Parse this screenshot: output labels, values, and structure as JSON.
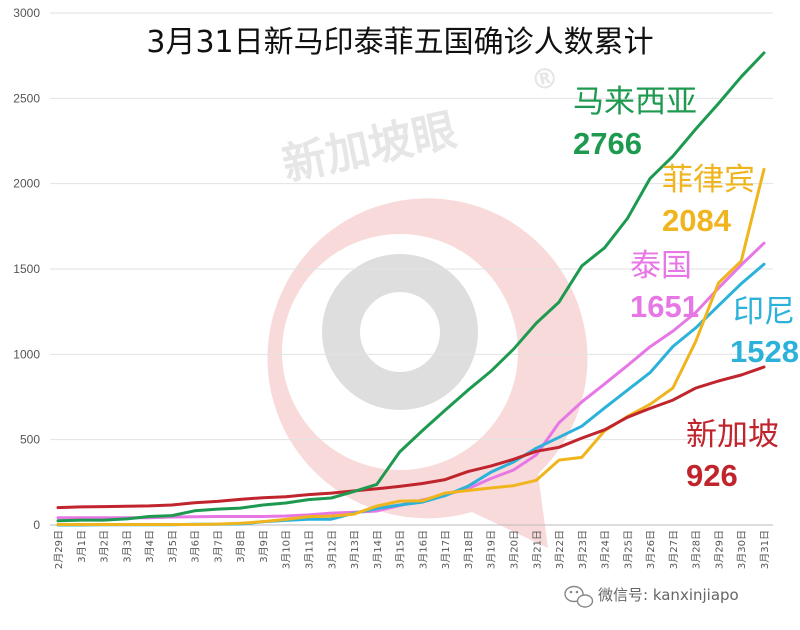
{
  "chart_data": {
    "type": "line",
    "title": "3月31日新马印泰菲五国确诊人数累计",
    "ylim": [
      0,
      3000
    ],
    "yticks": [
      0,
      500,
      1000,
      1500,
      2000,
      2500,
      3000
    ],
    "grid": true,
    "categories": [
      "2月29日",
      "3月1日",
      "3月2日",
      "3月3日",
      "3月4日",
      "3月5日",
      "3月6日",
      "3月7日",
      "3月8日",
      "3月9日",
      "3月10日",
      "3月11日",
      "3月12日",
      "3月13日",
      "3月14日",
      "3月15日",
      "3月16日",
      "3月17日",
      "3月18日",
      "3月19日",
      "3月20日",
      "3月21日",
      "3月22日",
      "3月23日",
      "3月24日",
      "3月25日",
      "3月26日",
      "3月27日",
      "3月28日",
      "3月29日",
      "3月30日",
      "3月31日"
    ],
    "series": [
      {
        "name": "马来西亚",
        "label_value": "2766",
        "color": "#1e9a50",
        "values": [
          25,
          29,
          29,
          36,
          50,
          55,
          83,
          93,
          99,
          117,
          129,
          149,
          158,
          197,
          238,
          428,
          553,
          673,
          790,
          900,
          1030,
          1183,
          1306,
          1518,
          1624,
          1796,
          2031,
          2161,
          2320,
          2470,
          2626,
          2766
        ]
      },
      {
        "name": "菲律宾",
        "label_value": "2084",
        "color": "#f0b51e",
        "values": [
          3,
          3,
          3,
          3,
          3,
          3,
          3,
          5,
          10,
          20,
          33,
          49,
          52,
          64,
          111,
          140,
          142,
          187,
          202,
          217,
          230,
          262,
          380,
          396,
          552,
          636,
          707,
          803,
          1075,
          1418,
          1546,
          2084
        ]
      },
      {
        "name": "泰国",
        "label_value": "1651",
        "color": "#e877e6",
        "values": [
          42,
          42,
          43,
          43,
          43,
          47,
          48,
          50,
          50,
          50,
          53,
          59,
          70,
          75,
          82,
          114,
          147,
          177,
          212,
          272,
          322,
          411,
          599,
          721,
          827,
          934,
          1045,
          1136,
          1245,
          1388,
          1524,
          1651
        ]
      },
      {
        "name": "印尼",
        "label_value": "1528",
        "color": "#2cb2da",
        "values": [
          0,
          0,
          2,
          2,
          2,
          2,
          4,
          4,
          6,
          19,
          27,
          34,
          34,
          69,
          96,
          117,
          134,
          172,
          227,
          309,
          369,
          450,
          514,
          579,
          686,
          790,
          893,
          1046,
          1155,
          1285,
          1414,
          1528
        ]
      },
      {
        "name": "新加坡",
        "label_value": "926",
        "color": "#c0242c",
        "values": [
          102,
          106,
          108,
          110,
          112,
          117,
          130,
          138,
          150,
          160,
          166,
          178,
          187,
          200,
          212,
          226,
          243,
          266,
          313,
          345,
          385,
          432,
          455,
          509,
          558,
          631,
          683,
          732,
          802,
          844,
          879,
          926
        ]
      }
    ]
  },
  "watermark": {
    "text": "新加坡眼",
    "mark": "®"
  },
  "footer": {
    "text": "微信号: kanxinjiapo"
  }
}
